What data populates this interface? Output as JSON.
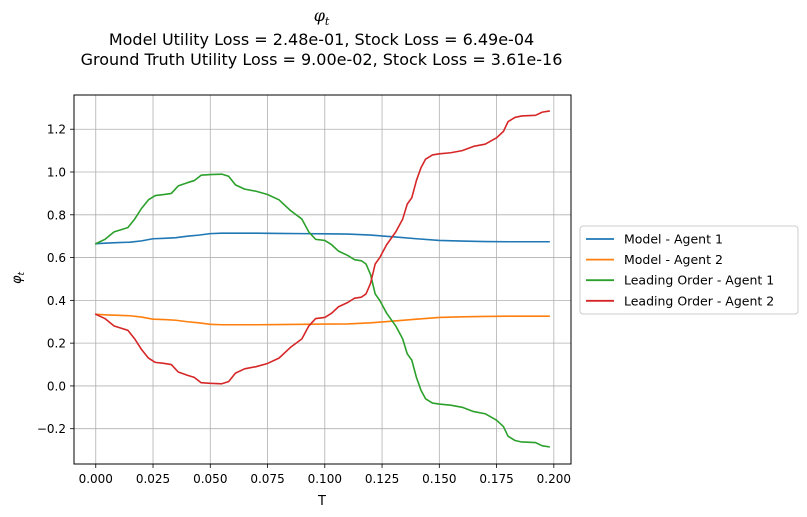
{
  "chart_data": {
    "type": "line",
    "title_lines": [
      "φt",
      "Model Utility Loss = 2.48e-01, Stock Loss = 6.49e-04",
      "Ground Truth Utility Loss = 9.00e-02, Stock Loss = 3.61e-16"
    ],
    "xlabel": "T",
    "ylabel": "φt",
    "xlim": [
      -0.0095,
      0.2075
    ],
    "ylim": [
      -0.365,
      1.36
    ],
    "xticks": [
      0.0,
      0.025,
      0.05,
      0.075,
      0.1,
      0.125,
      0.15,
      0.175,
      0.2
    ],
    "xtick_labels": [
      "0.000",
      "0.025",
      "0.050",
      "0.075",
      "0.100",
      "0.125",
      "0.150",
      "0.175",
      "0.200"
    ],
    "yticks": [
      -0.2,
      0.0,
      0.2,
      0.4,
      0.6,
      0.8,
      1.0,
      1.2
    ],
    "ytick_labels": [
      "−0.2",
      "0.0",
      "0.2",
      "0.4",
      "0.6",
      "0.8",
      "1.0",
      "1.2"
    ],
    "grid": true,
    "legend_position": "right-outside",
    "series": [
      {
        "name": "Model - Agent 1",
        "color": "#1f77b4",
        "points": [
          [
            0.0,
            0.665
          ],
          [
            0.005,
            0.668
          ],
          [
            0.01,
            0.67
          ],
          [
            0.015,
            0.672
          ],
          [
            0.02,
            0.678
          ],
          [
            0.025,
            0.688
          ],
          [
            0.03,
            0.69
          ],
          [
            0.035,
            0.693
          ],
          [
            0.04,
            0.7
          ],
          [
            0.045,
            0.705
          ],
          [
            0.05,
            0.712
          ],
          [
            0.055,
            0.714
          ],
          [
            0.06,
            0.714
          ],
          [
            0.07,
            0.714
          ],
          [
            0.08,
            0.713
          ],
          [
            0.09,
            0.712
          ],
          [
            0.1,
            0.711
          ],
          [
            0.11,
            0.71
          ],
          [
            0.12,
            0.705
          ],
          [
            0.13,
            0.697
          ],
          [
            0.14,
            0.688
          ],
          [
            0.15,
            0.68
          ],
          [
            0.16,
            0.677
          ],
          [
            0.17,
            0.675
          ],
          [
            0.18,
            0.674
          ],
          [
            0.19,
            0.674
          ],
          [
            0.198,
            0.674
          ]
        ]
      },
      {
        "name": "Model - Agent 2",
        "color": "#ff7f0e",
        "points": [
          [
            0.0,
            0.335
          ],
          [
            0.005,
            0.332
          ],
          [
            0.01,
            0.33
          ],
          [
            0.015,
            0.328
          ],
          [
            0.02,
            0.322
          ],
          [
            0.025,
            0.312
          ],
          [
            0.03,
            0.31
          ],
          [
            0.035,
            0.307
          ],
          [
            0.04,
            0.3
          ],
          [
            0.045,
            0.295
          ],
          [
            0.05,
            0.288
          ],
          [
            0.055,
            0.286
          ],
          [
            0.06,
            0.286
          ],
          [
            0.07,
            0.286
          ],
          [
            0.08,
            0.287
          ],
          [
            0.09,
            0.288
          ],
          [
            0.1,
            0.289
          ],
          [
            0.11,
            0.29
          ],
          [
            0.12,
            0.295
          ],
          [
            0.13,
            0.303
          ],
          [
            0.14,
            0.312
          ],
          [
            0.15,
            0.32
          ],
          [
            0.16,
            0.323
          ],
          [
            0.17,
            0.325
          ],
          [
            0.18,
            0.326
          ],
          [
            0.19,
            0.326
          ],
          [
            0.198,
            0.326
          ]
        ]
      },
      {
        "name": "Leading Order - Agent 1",
        "color": "#2ca02c",
        "points": [
          [
            0.0,
            0.665
          ],
          [
            0.004,
            0.685
          ],
          [
            0.008,
            0.72
          ],
          [
            0.011,
            0.73
          ],
          [
            0.014,
            0.74
          ],
          [
            0.017,
            0.78
          ],
          [
            0.02,
            0.83
          ],
          [
            0.023,
            0.87
          ],
          [
            0.026,
            0.89
          ],
          [
            0.03,
            0.895
          ],
          [
            0.033,
            0.9
          ],
          [
            0.036,
            0.935
          ],
          [
            0.04,
            0.95
          ],
          [
            0.043,
            0.96
          ],
          [
            0.046,
            0.985
          ],
          [
            0.05,
            0.988
          ],
          [
            0.055,
            0.99
          ],
          [
            0.058,
            0.98
          ],
          [
            0.061,
            0.94
          ],
          [
            0.065,
            0.92
          ],
          [
            0.07,
            0.91
          ],
          [
            0.075,
            0.895
          ],
          [
            0.08,
            0.87
          ],
          [
            0.085,
            0.82
          ],
          [
            0.09,
            0.78
          ],
          [
            0.093,
            0.72
          ],
          [
            0.096,
            0.685
          ],
          [
            0.1,
            0.68
          ],
          [
            0.103,
            0.66
          ],
          [
            0.106,
            0.63
          ],
          [
            0.11,
            0.61
          ],
          [
            0.113,
            0.59
          ],
          [
            0.116,
            0.585
          ],
          [
            0.118,
            0.57
          ],
          [
            0.12,
            0.52
          ],
          [
            0.122,
            0.43
          ],
          [
            0.124,
            0.4
          ],
          [
            0.127,
            0.34
          ],
          [
            0.131,
            0.28
          ],
          [
            0.134,
            0.22
          ],
          [
            0.136,
            0.15
          ],
          [
            0.138,
            0.12
          ],
          [
            0.14,
            0.04
          ],
          [
            0.142,
            -0.02
          ],
          [
            0.144,
            -0.06
          ],
          [
            0.147,
            -0.08
          ],
          [
            0.15,
            -0.085
          ],
          [
            0.155,
            -0.09
          ],
          [
            0.16,
            -0.1
          ],
          [
            0.165,
            -0.12
          ],
          [
            0.17,
            -0.13
          ],
          [
            0.175,
            -0.16
          ],
          [
            0.178,
            -0.19
          ],
          [
            0.18,
            -0.235
          ],
          [
            0.183,
            -0.255
          ],
          [
            0.186,
            -0.262
          ],
          [
            0.192,
            -0.265
          ],
          [
            0.195,
            -0.28
          ],
          [
            0.198,
            -0.285
          ]
        ]
      },
      {
        "name": "Leading Order - Agent 2",
        "color": "#d62728",
        "points": [
          [
            0.0,
            0.335
          ],
          [
            0.004,
            0.315
          ],
          [
            0.008,
            0.28
          ],
          [
            0.011,
            0.27
          ],
          [
            0.014,
            0.26
          ],
          [
            0.017,
            0.22
          ],
          [
            0.02,
            0.17
          ],
          [
            0.023,
            0.13
          ],
          [
            0.026,
            0.11
          ],
          [
            0.03,
            0.105
          ],
          [
            0.033,
            0.1
          ],
          [
            0.036,
            0.065
          ],
          [
            0.04,
            0.05
          ],
          [
            0.043,
            0.04
          ],
          [
            0.046,
            0.015
          ],
          [
            0.05,
            0.012
          ],
          [
            0.055,
            0.01
          ],
          [
            0.058,
            0.02
          ],
          [
            0.061,
            0.06
          ],
          [
            0.065,
            0.08
          ],
          [
            0.07,
            0.09
          ],
          [
            0.075,
            0.105
          ],
          [
            0.08,
            0.13
          ],
          [
            0.085,
            0.18
          ],
          [
            0.09,
            0.22
          ],
          [
            0.093,
            0.28
          ],
          [
            0.096,
            0.315
          ],
          [
            0.1,
            0.32
          ],
          [
            0.103,
            0.34
          ],
          [
            0.106,
            0.37
          ],
          [
            0.11,
            0.39
          ],
          [
            0.113,
            0.41
          ],
          [
            0.116,
            0.415
          ],
          [
            0.118,
            0.43
          ],
          [
            0.12,
            0.48
          ],
          [
            0.122,
            0.57
          ],
          [
            0.124,
            0.6
          ],
          [
            0.127,
            0.66
          ],
          [
            0.131,
            0.72
          ],
          [
            0.134,
            0.78
          ],
          [
            0.136,
            0.85
          ],
          [
            0.138,
            0.88
          ],
          [
            0.14,
            0.96
          ],
          [
            0.142,
            1.02
          ],
          [
            0.144,
            1.06
          ],
          [
            0.147,
            1.08
          ],
          [
            0.15,
            1.085
          ],
          [
            0.155,
            1.09
          ],
          [
            0.16,
            1.1
          ],
          [
            0.165,
            1.12
          ],
          [
            0.17,
            1.13
          ],
          [
            0.175,
            1.16
          ],
          [
            0.178,
            1.19
          ],
          [
            0.18,
            1.235
          ],
          [
            0.183,
            1.255
          ],
          [
            0.186,
            1.262
          ],
          [
            0.192,
            1.265
          ],
          [
            0.195,
            1.28
          ],
          [
            0.198,
            1.285
          ]
        ]
      }
    ]
  }
}
